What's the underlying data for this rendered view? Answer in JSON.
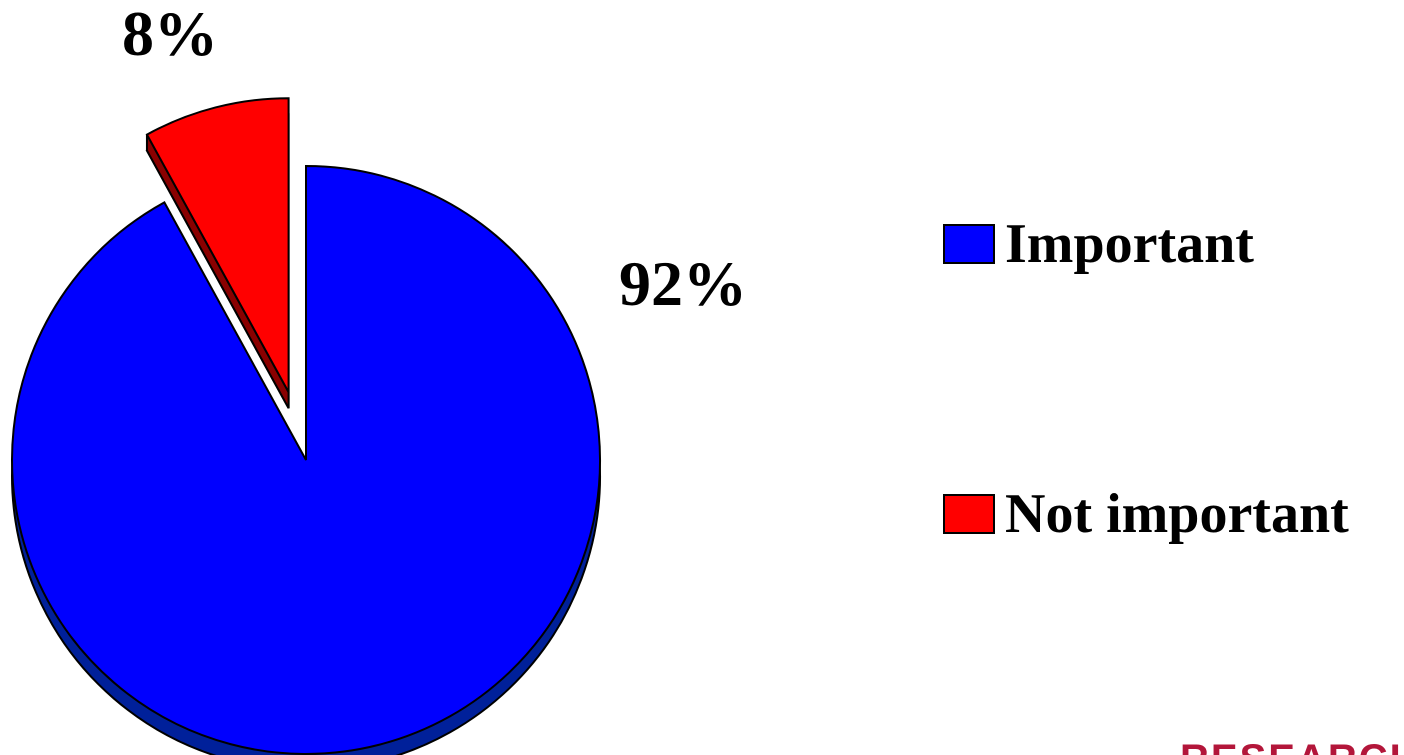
{
  "chart_data": {
    "type": "pie",
    "title": "",
    "categories": [
      "Important",
      "Not important"
    ],
    "values": [
      92,
      8
    ],
    "data_labels": [
      "92%",
      "8%"
    ],
    "colors": [
      "#0000ff",
      "#ff0000"
    ],
    "legend": {
      "placement": "right",
      "entries": [
        {
          "label": "Important",
          "color": "#0000ff"
        },
        {
          "label": "Not important",
          "color": "#ff0000"
        }
      ]
    },
    "style": "3d-exploded"
  },
  "branding": {
    "text": "RESEARCH"
  }
}
